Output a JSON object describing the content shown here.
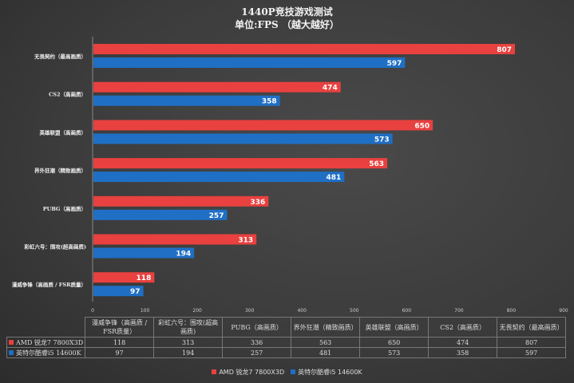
{
  "title": "1440P竞技游戏测试",
  "subtitle": "单位:FPS （越大越好）",
  "colors": {
    "amd": "#e8413f",
    "intel": "#1f6fc5"
  },
  "chart_data": {
    "type": "bar",
    "orientation": "horizontal",
    "title": "1440P竞技游戏测试",
    "subtitle": "单位:FPS （越大越好）",
    "categories": [
      "漫威争锋（高画质 / FSR质量）",
      "彩虹六号：围攻(超高画质)",
      "PUBG（高画质）",
      "界外狂潮（精致画质）",
      "英雄联盟（高画质）",
      "CS2（高画质）",
      "无畏契约（最高画质）"
    ],
    "series": [
      {
        "name": "AMD 锐龙7 7800X3D",
        "color": "#e8413f",
        "values": [
          118,
          313,
          336,
          563,
          650,
          474,
          807
        ]
      },
      {
        "name": "英特尔酷睿i5 14600K",
        "color": "#1f6fc5",
        "values": [
          97,
          194,
          257,
          481,
          573,
          358,
          597
        ]
      }
    ],
    "xlim": [
      0,
      900
    ],
    "xticks": [
      0,
      100,
      200,
      300,
      400,
      500,
      600,
      700,
      800,
      900
    ],
    "grid": false,
    "legend": "bottom",
    "data_table": true
  }
}
